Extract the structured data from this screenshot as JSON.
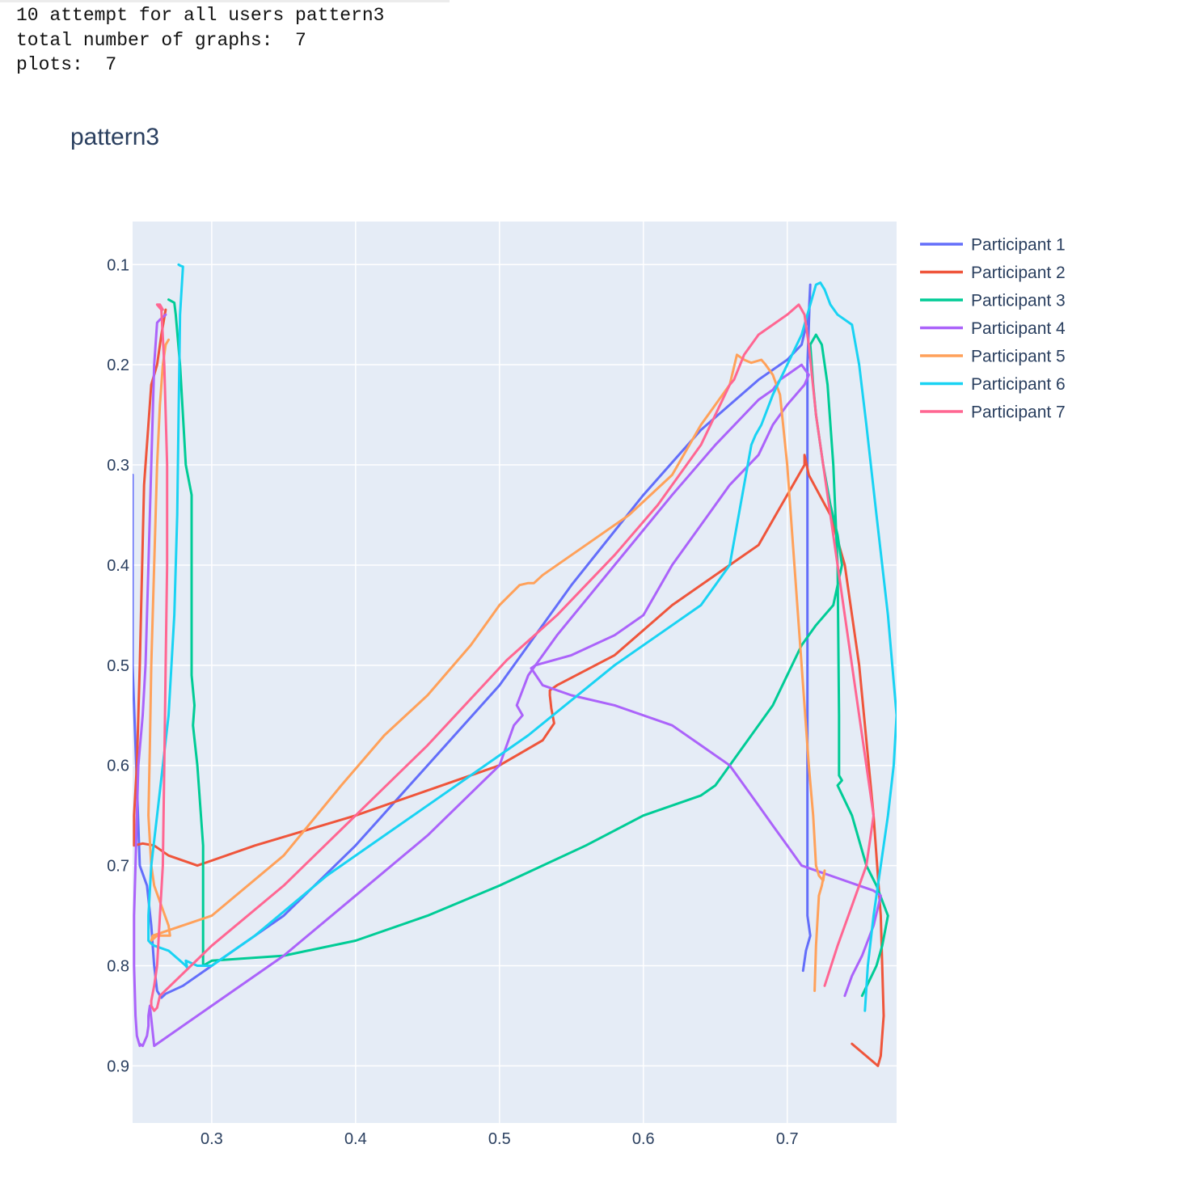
{
  "console": {
    "line1": "10 attempt for all users pattern3",
    "line2": "total number of graphs:  7",
    "line3": "plots:  7"
  },
  "chart_data": {
    "type": "line",
    "title": "pattern3",
    "xlabel": "",
    "ylabel": "",
    "xlim": [
      0.245,
      0.776
    ],
    "ylim": [
      0.957,
      0.057
    ],
    "y_reversed": true,
    "x_ticks": [
      0.3,
      0.4,
      0.5,
      0.6,
      0.7
    ],
    "x_tick_labels": [
      "0.3",
      "0.4",
      "0.5",
      "0.6",
      "0.7"
    ],
    "y_ticks": [
      0.1,
      0.2,
      0.3,
      0.4,
      0.5,
      0.6,
      0.7,
      0.8,
      0.9
    ],
    "y_tick_labels": [
      "0.1",
      "0.2",
      "0.3",
      "0.4",
      "0.5",
      "0.6",
      "0.7",
      "0.8",
      "0.9"
    ],
    "grid": true,
    "legend_position": "right",
    "series": [
      {
        "name": "Participant 1",
        "color": "#636efa",
        "x": [
          0.245,
          0.245,
          0.25,
          0.255,
          0.258,
          0.26,
          0.262,
          0.265,
          0.268,
          0.28,
          0.3,
          0.35,
          0.4,
          0.45,
          0.5,
          0.55,
          0.6,
          0.64,
          0.68,
          0.7,
          0.71,
          0.715,
          0.716,
          0.714,
          0.714,
          0.714,
          0.714,
          0.716,
          0.713,
          0.711
        ],
        "y": [
          0.31,
          0.5,
          0.7,
          0.72,
          0.76,
          0.8,
          0.825,
          0.832,
          0.828,
          0.82,
          0.8,
          0.75,
          0.68,
          0.6,
          0.52,
          0.42,
          0.33,
          0.265,
          0.215,
          0.195,
          0.18,
          0.15,
          0.12,
          0.2,
          0.4,
          0.6,
          0.75,
          0.77,
          0.785,
          0.805
        ]
      },
      {
        "name": "Participant 2",
        "color": "#ef553b",
        "x": [
          0.268,
          0.265,
          0.262,
          0.258,
          0.253,
          0.25,
          0.248,
          0.246,
          0.246,
          0.252,
          0.26,
          0.27,
          0.29,
          0.33,
          0.4,
          0.45,
          0.5,
          0.53,
          0.538,
          0.536,
          0.535,
          0.535,
          0.54,
          0.58,
          0.62,
          0.66,
          0.68,
          0.7,
          0.712,
          0.712,
          0.715,
          0.73,
          0.74,
          0.75,
          0.76,
          0.765,
          0.767,
          0.765,
          0.763,
          0.745
        ],
        "y": [
          0.145,
          0.17,
          0.2,
          0.22,
          0.32,
          0.5,
          0.6,
          0.65,
          0.68,
          0.678,
          0.68,
          0.69,
          0.7,
          0.68,
          0.65,
          0.625,
          0.6,
          0.575,
          0.558,
          0.543,
          0.53,
          0.525,
          0.52,
          0.49,
          0.44,
          0.4,
          0.38,
          0.33,
          0.3,
          0.29,
          0.31,
          0.35,
          0.4,
          0.5,
          0.65,
          0.75,
          0.85,
          0.89,
          0.9,
          0.878
        ]
      },
      {
        "name": "Participant 3",
        "color": "#00cc96",
        "x": [
          0.27,
          0.274,
          0.275,
          0.278,
          0.282,
          0.286,
          0.286,
          0.288,
          0.287,
          0.29,
          0.294,
          0.294,
          0.294,
          0.294,
          0.3,
          0.35,
          0.4,
          0.45,
          0.5,
          0.56,
          0.6,
          0.64,
          0.65,
          0.67,
          0.69,
          0.7,
          0.71,
          0.72,
          0.732,
          0.738,
          0.735,
          0.73,
          0.725,
          0.72,
          0.718,
          0.716,
          0.72,
          0.724,
          0.728,
          0.732,
          0.735,
          0.736,
          0.736,
          0.736,
          0.738,
          0.735,
          0.745,
          0.755,
          0.762,
          0.77,
          0.766,
          0.762,
          0.752
        ],
        "y": [
          0.135,
          0.138,
          0.15,
          0.2,
          0.3,
          0.33,
          0.51,
          0.54,
          0.56,
          0.6,
          0.68,
          0.7,
          0.78,
          0.8,
          0.795,
          0.79,
          0.775,
          0.75,
          0.72,
          0.68,
          0.65,
          0.63,
          0.62,
          0.58,
          0.54,
          0.51,
          0.48,
          0.46,
          0.44,
          0.4,
          0.37,
          0.34,
          0.3,
          0.25,
          0.22,
          0.18,
          0.17,
          0.18,
          0.22,
          0.3,
          0.4,
          0.55,
          0.6,
          0.61,
          0.615,
          0.62,
          0.65,
          0.7,
          0.72,
          0.75,
          0.78,
          0.8,
          0.83
        ]
      },
      {
        "name": "Participant 4",
        "color": "#ab63fa",
        "x": [
          0.268,
          0.264,
          0.262,
          0.26,
          0.258,
          0.256,
          0.254,
          0.252,
          0.249,
          0.248,
          0.247,
          0.246,
          0.246,
          0.247,
          0.248,
          0.249,
          0.25,
          0.25,
          0.252,
          0.255,
          0.256,
          0.256,
          0.257,
          0.26,
          0.3,
          0.35,
          0.4,
          0.45,
          0.5,
          0.51,
          0.516,
          0.512,
          0.52,
          0.54,
          0.58,
          0.62,
          0.65,
          0.67,
          0.68,
          0.69,
          0.695,
          0.7,
          0.705,
          0.71,
          0.715,
          0.712,
          0.7,
          0.69,
          0.68,
          0.66,
          0.64,
          0.62,
          0.6,
          0.58,
          0.55,
          0.525,
          0.522,
          0.53,
          0.55,
          0.58,
          0.62,
          0.64,
          0.66,
          0.67,
          0.68,
          0.69,
          0.7,
          0.71,
          0.72,
          0.73,
          0.75,
          0.76,
          0.765,
          0.76,
          0.752,
          0.745,
          0.74
        ],
        "y": [
          0.15,
          0.155,
          0.158,
          0.2,
          0.3,
          0.4,
          0.5,
          0.55,
          0.6,
          0.65,
          0.7,
          0.75,
          0.8,
          0.85,
          0.87,
          0.875,
          0.88,
          0.878,
          0.88,
          0.87,
          0.86,
          0.85,
          0.84,
          0.88,
          0.84,
          0.79,
          0.73,
          0.67,
          0.6,
          0.56,
          0.55,
          0.54,
          0.51,
          0.47,
          0.4,
          0.33,
          0.28,
          0.25,
          0.235,
          0.225,
          0.215,
          0.21,
          0.205,
          0.2,
          0.21,
          0.22,
          0.24,
          0.26,
          0.29,
          0.32,
          0.36,
          0.4,
          0.45,
          0.47,
          0.49,
          0.5,
          0.503,
          0.52,
          0.53,
          0.54,
          0.56,
          0.58,
          0.6,
          0.62,
          0.64,
          0.66,
          0.68,
          0.7,
          0.705,
          0.71,
          0.72,
          0.725,
          0.73,
          0.76,
          0.79,
          0.81,
          0.83
        ]
      },
      {
        "name": "Participant 5",
        "color": "#ffa15a",
        "x": [
          0.27,
          0.268,
          0.266,
          0.264,
          0.262,
          0.26,
          0.258,
          0.257,
          0.256,
          0.258,
          0.26,
          0.265,
          0.27,
          0.271,
          0.268,
          0.262,
          0.258,
          0.259,
          0.3,
          0.35,
          0.39,
          0.42,
          0.45,
          0.48,
          0.5,
          0.514,
          0.52,
          0.524,
          0.53,
          0.56,
          0.59,
          0.62,
          0.64,
          0.66,
          0.665,
          0.67,
          0.675,
          0.682,
          0.685,
          0.69,
          0.695,
          0.7,
          0.705,
          0.71,
          0.715,
          0.718,
          0.72,
          0.722,
          0.725,
          0.726,
          0.724,
          0.722,
          0.72,
          0.719
        ],
        "y": [
          0.175,
          0.18,
          0.2,
          0.24,
          0.3,
          0.4,
          0.5,
          0.58,
          0.65,
          0.7,
          0.72,
          0.74,
          0.76,
          0.77,
          0.77,
          0.77,
          0.775,
          0.77,
          0.75,
          0.69,
          0.62,
          0.57,
          0.53,
          0.48,
          0.44,
          0.42,
          0.418,
          0.418,
          0.41,
          0.38,
          0.35,
          0.31,
          0.26,
          0.22,
          0.19,
          0.195,
          0.198,
          0.195,
          0.2,
          0.21,
          0.23,
          0.3,
          0.4,
          0.5,
          0.6,
          0.65,
          0.7,
          0.71,
          0.715,
          0.705,
          0.72,
          0.73,
          0.78,
          0.825
        ]
      },
      {
        "name": "Participant 6",
        "color": "#19d3f3",
        "x": [
          0.277,
          0.278,
          0.28,
          0.278,
          0.277,
          0.276,
          0.274,
          0.27,
          0.266,
          0.262,
          0.258,
          0.256,
          0.256,
          0.258,
          0.26,
          0.27,
          0.278,
          0.282,
          0.283,
          0.282,
          0.29,
          0.3,
          0.33,
          0.38,
          0.45,
          0.52,
          0.58,
          0.62,
          0.64,
          0.65,
          0.66,
          0.665,
          0.67,
          0.675,
          0.678,
          0.682,
          0.69,
          0.7,
          0.71,
          0.716,
          0.72,
          0.723,
          0.726,
          0.73,
          0.735,
          0.745,
          0.75,
          0.755,
          0.762,
          0.77,
          0.776,
          0.774,
          0.77,
          0.765,
          0.76,
          0.756,
          0.754
        ],
        "y": [
          0.1,
          0.101,
          0.102,
          0.15,
          0.25,
          0.35,
          0.45,
          0.55,
          0.6,
          0.65,
          0.7,
          0.75,
          0.775,
          0.778,
          0.78,
          0.785,
          0.795,
          0.8,
          0.802,
          0.795,
          0.8,
          0.8,
          0.77,
          0.71,
          0.64,
          0.57,
          0.5,
          0.46,
          0.44,
          0.42,
          0.4,
          0.36,
          0.32,
          0.28,
          0.27,
          0.26,
          0.23,
          0.2,
          0.17,
          0.14,
          0.12,
          0.118,
          0.125,
          0.14,
          0.15,
          0.16,
          0.2,
          0.26,
          0.35,
          0.45,
          0.55,
          0.6,
          0.65,
          0.7,
          0.75,
          0.8,
          0.845
        ]
      },
      {
        "name": "Participant 7",
        "color": "#ff6692",
        "x": [
          0.266,
          0.264,
          0.262,
          0.265,
          0.267,
          0.269,
          0.269,
          0.268,
          0.267,
          0.266,
          0.264,
          0.262,
          0.26,
          0.258,
          0.258,
          0.26,
          0.262,
          0.264,
          0.3,
          0.35,
          0.4,
          0.45,
          0.505,
          0.54,
          0.58,
          0.61,
          0.64,
          0.66,
          0.663,
          0.67,
          0.68,
          0.69,
          0.7,
          0.708,
          0.712,
          0.715,
          0.72,
          0.73,
          0.74,
          0.75,
          0.76,
          0.755,
          0.745,
          0.735,
          0.726
        ],
        "y": [
          0.145,
          0.14,
          0.14,
          0.145,
          0.2,
          0.3,
          0.4,
          0.5,
          0.6,
          0.7,
          0.75,
          0.8,
          0.82,
          0.835,
          0.84,
          0.845,
          0.842,
          0.83,
          0.78,
          0.72,
          0.65,
          0.58,
          0.495,
          0.45,
          0.39,
          0.34,
          0.28,
          0.22,
          0.215,
          0.19,
          0.17,
          0.16,
          0.15,
          0.14,
          0.15,
          0.18,
          0.25,
          0.35,
          0.45,
          0.55,
          0.65,
          0.7,
          0.74,
          0.78,
          0.82
        ]
      }
    ]
  }
}
